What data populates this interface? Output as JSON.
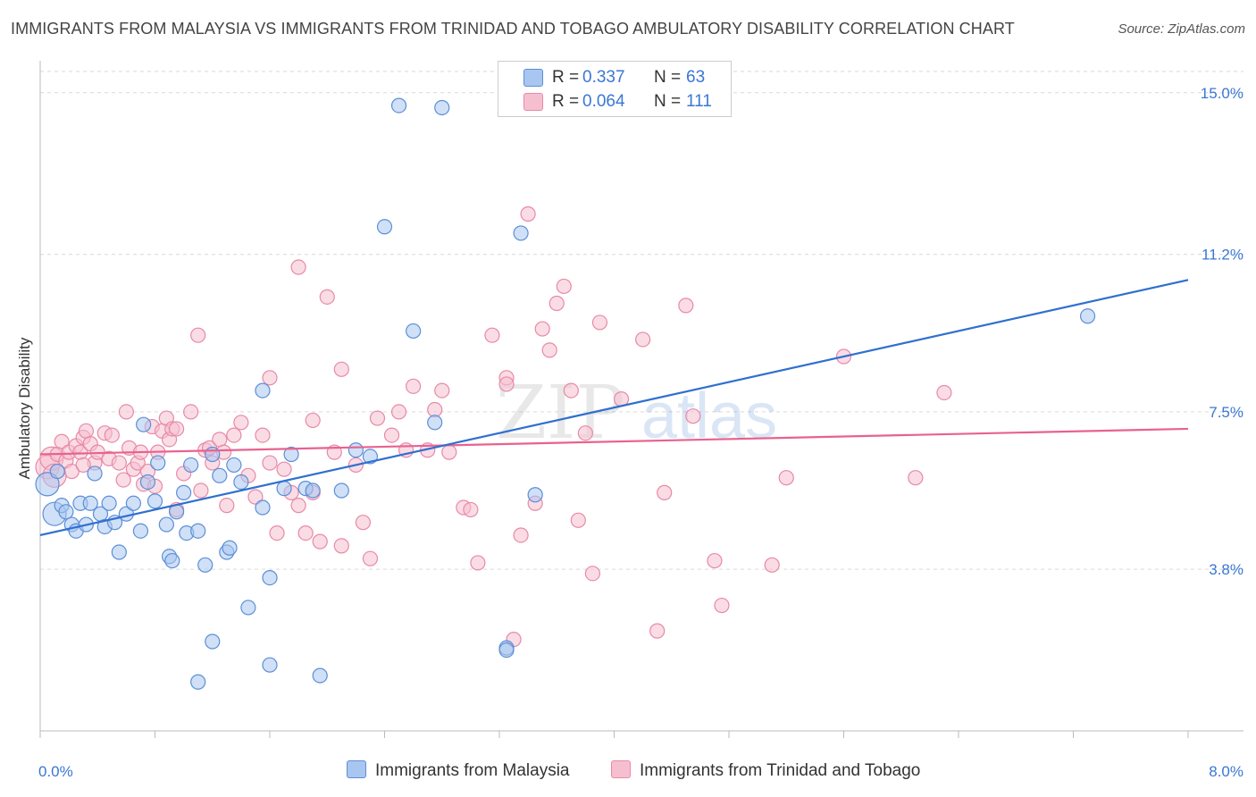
{
  "title": "IMMIGRANTS FROM MALAYSIA VS IMMIGRANTS FROM TRINIDAD AND TOBAGO AMBULATORY DISABILITY CORRELATION CHART",
  "source": "Source: ZipAtlas.com",
  "watermark": {
    "zip": "ZIP",
    "atlas": "atlas"
  },
  "legend": {
    "r_label": "R =",
    "n_label": "N =",
    "rows": [
      {
        "r": "0.337",
        "n": "63"
      },
      {
        "r": "0.064",
        "n": "111"
      }
    ]
  },
  "colors": {
    "blue_fill": "#a9c6f0",
    "blue_stroke": "#5b8fd6",
    "blue_line": "#2f6fd0",
    "pink_fill": "#f6bfd0",
    "pink_stroke": "#e889a8",
    "pink_line": "#e8628f",
    "tick_label": "#3a77d4",
    "grid": "#d9d9d9"
  },
  "chart_data": {
    "type": "scatter",
    "ylabel": "Ambulatory Disability",
    "xlabel": "",
    "xlim": [
      0,
      8.0
    ],
    "ylim": [
      0,
      15.5
    ],
    "x_tick_labels": [
      "0.0%",
      "8.0%"
    ],
    "y_ticks": [
      3.8,
      7.5,
      11.2,
      15.0
    ],
    "y_tick_labels": [
      "3.8%",
      "7.5%",
      "11.2%",
      "15.0%"
    ],
    "legend_position": "top-center",
    "grid": true,
    "series": [
      {
        "name": "Immigrants from Malaysia",
        "r": 0.337,
        "n": 63,
        "trend": {
          "x0": 0.0,
          "y0": 4.6,
          "x1": 8.0,
          "y1": 10.6
        },
        "points": [
          [
            0.05,
            5.8
          ],
          [
            0.1,
            5.1
          ],
          [
            0.12,
            6.1
          ],
          [
            0.15,
            5.3
          ],
          [
            0.18,
            5.15
          ],
          [
            0.22,
            4.85
          ],
          [
            0.25,
            4.7
          ],
          [
            0.28,
            5.35
          ],
          [
            0.32,
            4.85
          ],
          [
            0.35,
            5.35
          ],
          [
            0.38,
            6.05
          ],
          [
            0.42,
            5.1
          ],
          [
            0.45,
            4.8
          ],
          [
            0.48,
            5.35
          ],
          [
            0.52,
            4.9
          ],
          [
            0.55,
            4.2
          ],
          [
            0.6,
            5.1
          ],
          [
            0.65,
            5.35
          ],
          [
            0.7,
            4.7
          ],
          [
            0.72,
            7.2
          ],
          [
            0.75,
            5.85
          ],
          [
            0.8,
            5.4
          ],
          [
            0.82,
            6.3
          ],
          [
            0.88,
            4.85
          ],
          [
            0.9,
            4.1
          ],
          [
            0.92,
            4.0
          ],
          [
            0.95,
            5.15
          ],
          [
            1.0,
            5.6
          ],
          [
            1.02,
            4.65
          ],
          [
            1.05,
            6.25
          ],
          [
            1.1,
            4.7
          ],
          [
            1.15,
            3.9
          ],
          [
            1.2,
            6.5
          ],
          [
            1.25,
            6.0
          ],
          [
            1.3,
            4.2
          ],
          [
            1.32,
            4.3
          ],
          [
            1.35,
            6.25
          ],
          [
            1.4,
            5.85
          ],
          [
            1.45,
            2.9
          ],
          [
            1.55,
            5.25
          ],
          [
            1.6,
            3.6
          ],
          [
            1.7,
            5.7
          ],
          [
            1.75,
            6.5
          ],
          [
            1.85,
            5.7
          ],
          [
            1.9,
            5.65
          ],
          [
            2.1,
            5.65
          ],
          [
            2.2,
            6.6
          ],
          [
            2.3,
            6.45
          ],
          [
            2.4,
            11.85
          ],
          [
            2.5,
            14.7
          ],
          [
            2.6,
            9.4
          ],
          [
            2.75,
            7.25
          ],
          [
            2.8,
            14.65
          ],
          [
            3.25,
            1.95
          ],
          [
            3.35,
            11.7
          ],
          [
            3.45,
            5.55
          ],
          [
            1.2,
            2.1
          ],
          [
            1.6,
            1.55
          ],
          [
            1.95,
            1.3
          ],
          [
            1.1,
            1.15
          ],
          [
            1.55,
            8.0
          ],
          [
            7.3,
            9.75
          ],
          [
            3.25,
            1.9
          ]
        ]
      },
      {
        "name": "Immigrants from Trinidad and Tobago",
        "r": 0.064,
        "n": 111,
        "trend": {
          "x0": 0.0,
          "y0": 6.5,
          "x1": 8.0,
          "y1": 7.1
        },
        "points": [
          [
            0.05,
            6.2
          ],
          [
            0.08,
            6.4
          ],
          [
            0.1,
            6.0
          ],
          [
            0.12,
            6.5
          ],
          [
            0.15,
            6.8
          ],
          [
            0.18,
            6.35
          ],
          [
            0.2,
            6.55
          ],
          [
            0.22,
            6.1
          ],
          [
            0.25,
            6.7
          ],
          [
            0.28,
            6.55
          ],
          [
            0.3,
            6.9
          ],
          [
            0.32,
            7.05
          ],
          [
            0.35,
            6.75
          ],
          [
            0.38,
            6.3
          ],
          [
            0.4,
            6.55
          ],
          [
            0.45,
            7.0
          ],
          [
            0.48,
            6.4
          ],
          [
            0.5,
            6.95
          ],
          [
            0.55,
            6.3
          ],
          [
            0.58,
            5.9
          ],
          [
            0.6,
            7.5
          ],
          [
            0.62,
            6.65
          ],
          [
            0.65,
            6.15
          ],
          [
            0.68,
            6.3
          ],
          [
            0.7,
            6.55
          ],
          [
            0.72,
            5.8
          ],
          [
            0.75,
            6.1
          ],
          [
            0.78,
            7.15
          ],
          [
            0.8,
            5.75
          ],
          [
            0.82,
            6.55
          ],
          [
            0.85,
            7.05
          ],
          [
            0.88,
            7.35
          ],
          [
            0.9,
            6.85
          ],
          [
            0.92,
            7.1
          ],
          [
            0.95,
            5.2
          ],
          [
            1.0,
            6.05
          ],
          [
            1.05,
            7.5
          ],
          [
            1.1,
            9.3
          ],
          [
            1.12,
            5.65
          ],
          [
            1.15,
            6.6
          ],
          [
            1.18,
            6.65
          ],
          [
            1.2,
            6.3
          ],
          [
            1.25,
            6.85
          ],
          [
            1.28,
            6.55
          ],
          [
            1.3,
            5.3
          ],
          [
            1.35,
            6.95
          ],
          [
            1.4,
            7.25
          ],
          [
            1.45,
            6.0
          ],
          [
            1.5,
            5.5
          ],
          [
            1.55,
            6.95
          ],
          [
            1.6,
            6.3
          ],
          [
            1.65,
            4.65
          ],
          [
            1.7,
            6.15
          ],
          [
            1.75,
            5.6
          ],
          [
            1.8,
            5.3
          ],
          [
            1.85,
            4.65
          ],
          [
            1.9,
            5.6
          ],
          [
            1.95,
            4.45
          ],
          [
            2.0,
            10.2
          ],
          [
            2.05,
            6.55
          ],
          [
            2.1,
            4.35
          ],
          [
            2.2,
            6.25
          ],
          [
            2.25,
            4.9
          ],
          [
            2.3,
            4.05
          ],
          [
            2.35,
            7.35
          ],
          [
            2.45,
            6.95
          ],
          [
            2.5,
            7.5
          ],
          [
            2.6,
            8.1
          ],
          [
            2.7,
            6.6
          ],
          [
            2.75,
            7.55
          ],
          [
            2.8,
            8.0
          ],
          [
            2.85,
            6.55
          ],
          [
            2.95,
            5.25
          ],
          [
            3.05,
            3.95
          ],
          [
            3.15,
            9.3
          ],
          [
            3.25,
            8.3
          ],
          [
            3.3,
            2.15
          ],
          [
            3.35,
            4.6
          ],
          [
            3.4,
            12.15
          ],
          [
            3.45,
            5.35
          ],
          [
            3.5,
            9.45
          ],
          [
            3.55,
            8.95
          ],
          [
            3.6,
            10.05
          ],
          [
            3.65,
            10.45
          ],
          [
            3.7,
            8.0
          ],
          [
            3.75,
            4.95
          ],
          [
            3.8,
            7.0
          ],
          [
            3.85,
            3.7
          ],
          [
            3.9,
            9.6
          ],
          [
            4.05,
            7.8
          ],
          [
            4.2,
            9.2
          ],
          [
            4.3,
            2.35
          ],
          [
            4.35,
            5.6
          ],
          [
            4.5,
            10.0
          ],
          [
            4.55,
            7.4
          ],
          [
            4.7,
            4.0
          ],
          [
            4.75,
            2.95
          ],
          [
            5.1,
            3.9
          ],
          [
            5.2,
            5.95
          ],
          [
            5.6,
            8.8
          ],
          [
            6.1,
            5.95
          ],
          [
            6.3,
            7.95
          ],
          [
            1.6,
            8.3
          ],
          [
            2.1,
            8.5
          ],
          [
            1.8,
            10.9
          ],
          [
            1.9,
            7.3
          ],
          [
            3.0,
            5.2
          ],
          [
            0.95,
            7.1
          ],
          [
            2.55,
            6.6
          ],
          [
            3.25,
            8.15
          ],
          [
            0.3,
            6.25
          ]
        ]
      }
    ]
  },
  "bottom_legend": [
    "Immigrants from Malaysia",
    "Immigrants from Trinidad and Tobago"
  ]
}
